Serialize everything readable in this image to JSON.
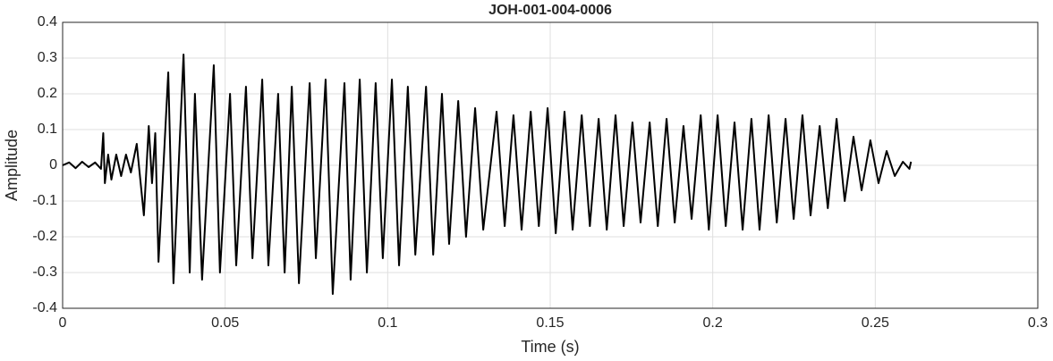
{
  "chart_data": {
    "type": "line",
    "title": "JOH-001-004-0006",
    "xlabel": "Time (s)",
    "ylabel": "Amplitude",
    "xlim": [
      0,
      0.3
    ],
    "ylim": [
      -0.4,
      0.4
    ],
    "xticks": [
      0,
      0.05,
      0.1,
      0.15,
      0.2,
      0.25,
      0.3
    ],
    "yticks": [
      -0.4,
      -0.3,
      -0.2,
      -0.1,
      0,
      0.1,
      0.2,
      0.3,
      0.4
    ],
    "grid": true,
    "color": "#000000",
    "x": [
      0,
      0.002,
      0.004,
      0.006,
      0.008,
      0.01,
      0.0118,
      0.0125,
      0.013,
      0.014,
      0.015,
      0.0165,
      0.018,
      0.0195,
      0.021,
      0.0228,
      0.025,
      0.0265,
      0.0275,
      0.0285,
      0.0295,
      0.0325,
      0.0341,
      0.0372,
      0.0391,
      0.0407,
      0.0429,
      0.0465,
      0.0484,
      0.0515,
      0.0534,
      0.0564,
      0.0584,
      0.0614,
      0.0633,
      0.0663,
      0.0683,
      0.0705,
      0.0727,
      0.076,
      0.0779,
      0.0809,
      0.0831,
      0.0867,
      0.0886,
      0.0914,
      0.0936,
      0.0963,
      0.0985,
      0.1013,
      0.1035,
      0.1062,
      0.1085,
      0.1118,
      0.114,
      0.1167,
      0.1189,
      0.1217,
      0.1241,
      0.1269,
      0.1294,
      0.1335,
      0.136,
      0.1387,
      0.1412,
      0.144,
      0.1465,
      0.1492,
      0.1517,
      0.1544,
      0.1569,
      0.1597,
      0.1622,
      0.1649,
      0.1674,
      0.1701,
      0.1726,
      0.1753,
      0.1778,
      0.1806,
      0.1831,
      0.1858,
      0.1883,
      0.191,
      0.1935,
      0.1963,
      0.1988,
      0.2015,
      0.204,
      0.2067,
      0.2092,
      0.2119,
      0.2144,
      0.2172,
      0.2197,
      0.2224,
      0.2249,
      0.2276,
      0.2301,
      0.2329,
      0.2354,
      0.2381,
      0.2406,
      0.2433,
      0.2458,
      0.2485,
      0.251,
      0.2535,
      0.256,
      0.2585,
      0.2605,
      0.261
    ],
    "values": [
      0,
      0.008,
      -0.008,
      0.01,
      -0.005,
      0.008,
      -0.01,
      0.09,
      -0.05,
      0.03,
      -0.04,
      0.03,
      -0.03,
      0.03,
      -0.02,
      0.06,
      -0.14,
      0.11,
      -0.05,
      0.09,
      -0.27,
      0.26,
      -0.33,
      0.31,
      -0.3,
      0.2,
      -0.32,
      0.28,
      -0.3,
      0.2,
      -0.28,
      0.22,
      -0.26,
      0.24,
      -0.28,
      0.2,
      -0.3,
      0.22,
      -0.33,
      0.23,
      -0.26,
      0.24,
      -0.36,
      0.23,
      -0.32,
      0.24,
      -0.3,
      0.23,
      -0.26,
      0.24,
      -0.28,
      0.22,
      -0.25,
      0.22,
      -0.25,
      0.2,
      -0.22,
      0.18,
      -0.2,
      0.16,
      -0.18,
      0.15,
      -0.17,
      0.14,
      -0.18,
      0.15,
      -0.17,
      0.16,
      -0.19,
      0.15,
      -0.18,
      0.14,
      -0.17,
      0.13,
      -0.18,
      0.14,
      -0.17,
      0.12,
      -0.16,
      0.12,
      -0.17,
      0.13,
      -0.16,
      0.11,
      -0.15,
      0.14,
      -0.18,
      0.14,
      -0.17,
      0.12,
      -0.18,
      0.13,
      -0.18,
      0.14,
      -0.16,
      0.13,
      -0.15,
      0.14,
      -0.14,
      0.11,
      -0.12,
      0.13,
      -0.1,
      0.08,
      -0.07,
      0.07,
      -0.05,
      0.04,
      -0.03,
      0.01,
      -0.01,
      0.01
    ]
  }
}
